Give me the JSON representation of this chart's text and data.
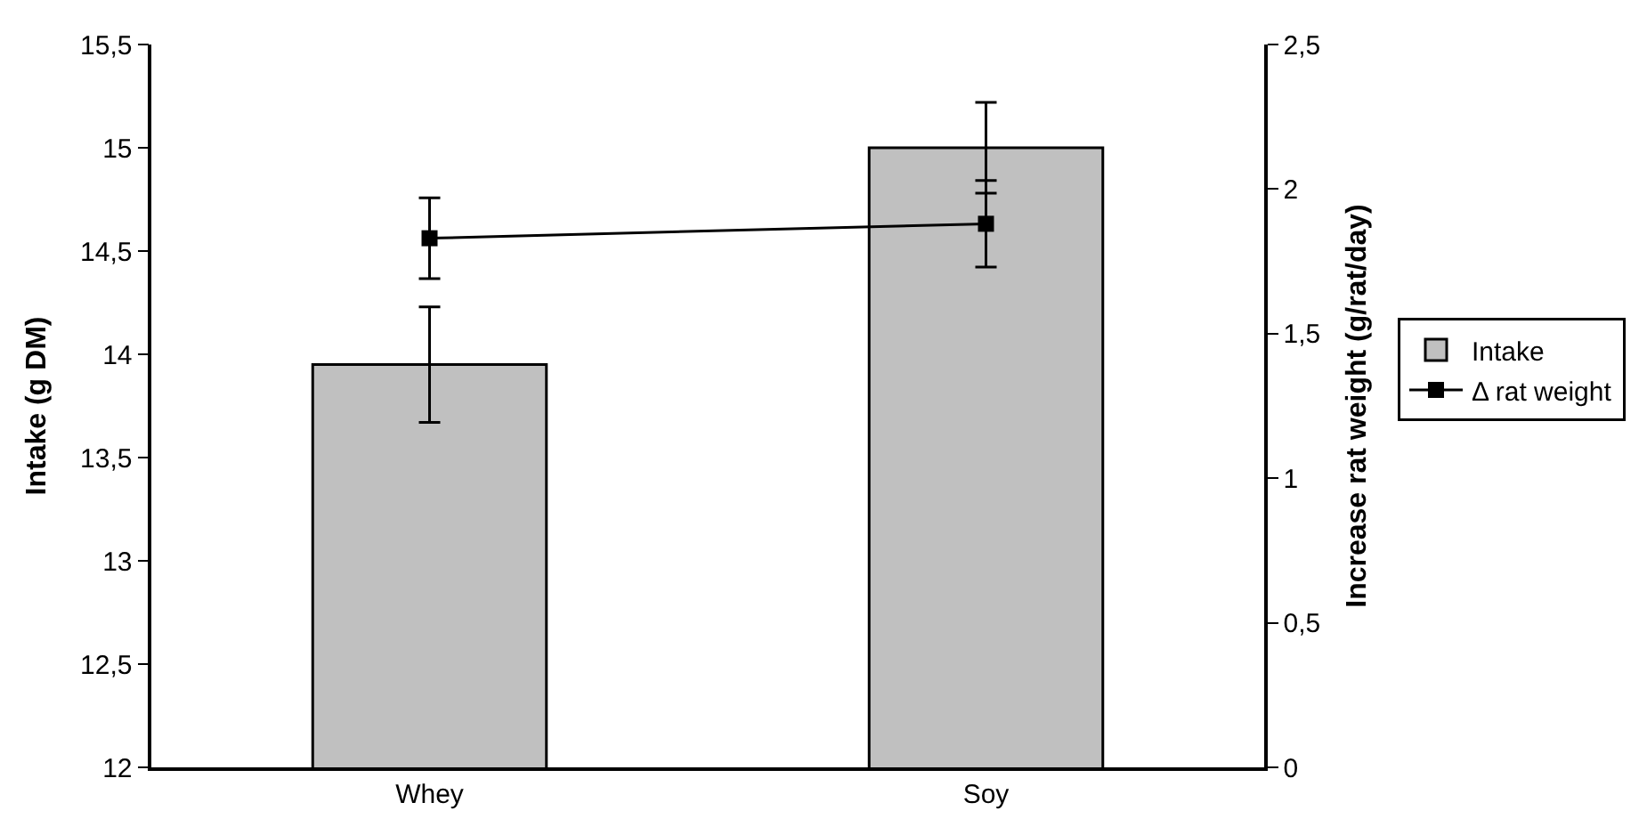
{
  "chart_data": {
    "type": "bar",
    "categories": [
      "Whey",
      "Soy"
    ],
    "ylabel": "Intake (g DM)",
    "y2label": "Increase rat weight (g/rat/day)",
    "series": [
      {
        "name": "Intake",
        "color": "#c0c0c0",
        "values": [
          13.95,
          15.0
        ],
        "errors": [
          0.28,
          0.22
        ]
      },
      {
        "name": "Δ rat weight",
        "type": "line",
        "axis": "y2",
        "color": "#000000",
        "marker": "square",
        "values": [
          1.83,
          1.88
        ],
        "errors": [
          0.14,
          0.15
        ]
      }
    ],
    "ylim": [
      12,
      15.5
    ],
    "yticks": [
      12,
      {
        "value": 12.5,
        "label": "12,5"
      },
      13,
      {
        "value": 13.5,
        "label": "13,5"
      },
      14,
      {
        "value": 14.5,
        "label": "14,5"
      },
      15,
      {
        "value": 15.5,
        "label": "15,5"
      }
    ],
    "y2lim": [
      0,
      2.5
    ],
    "y2ticks": [
      0,
      {
        "value": 0.5,
        "label": "0,5"
      },
      1,
      {
        "value": 1.5,
        "label": "1,5"
      },
      2,
      {
        "value": 2.5,
        "label": "2,5"
      }
    ],
    "legend": "right"
  }
}
